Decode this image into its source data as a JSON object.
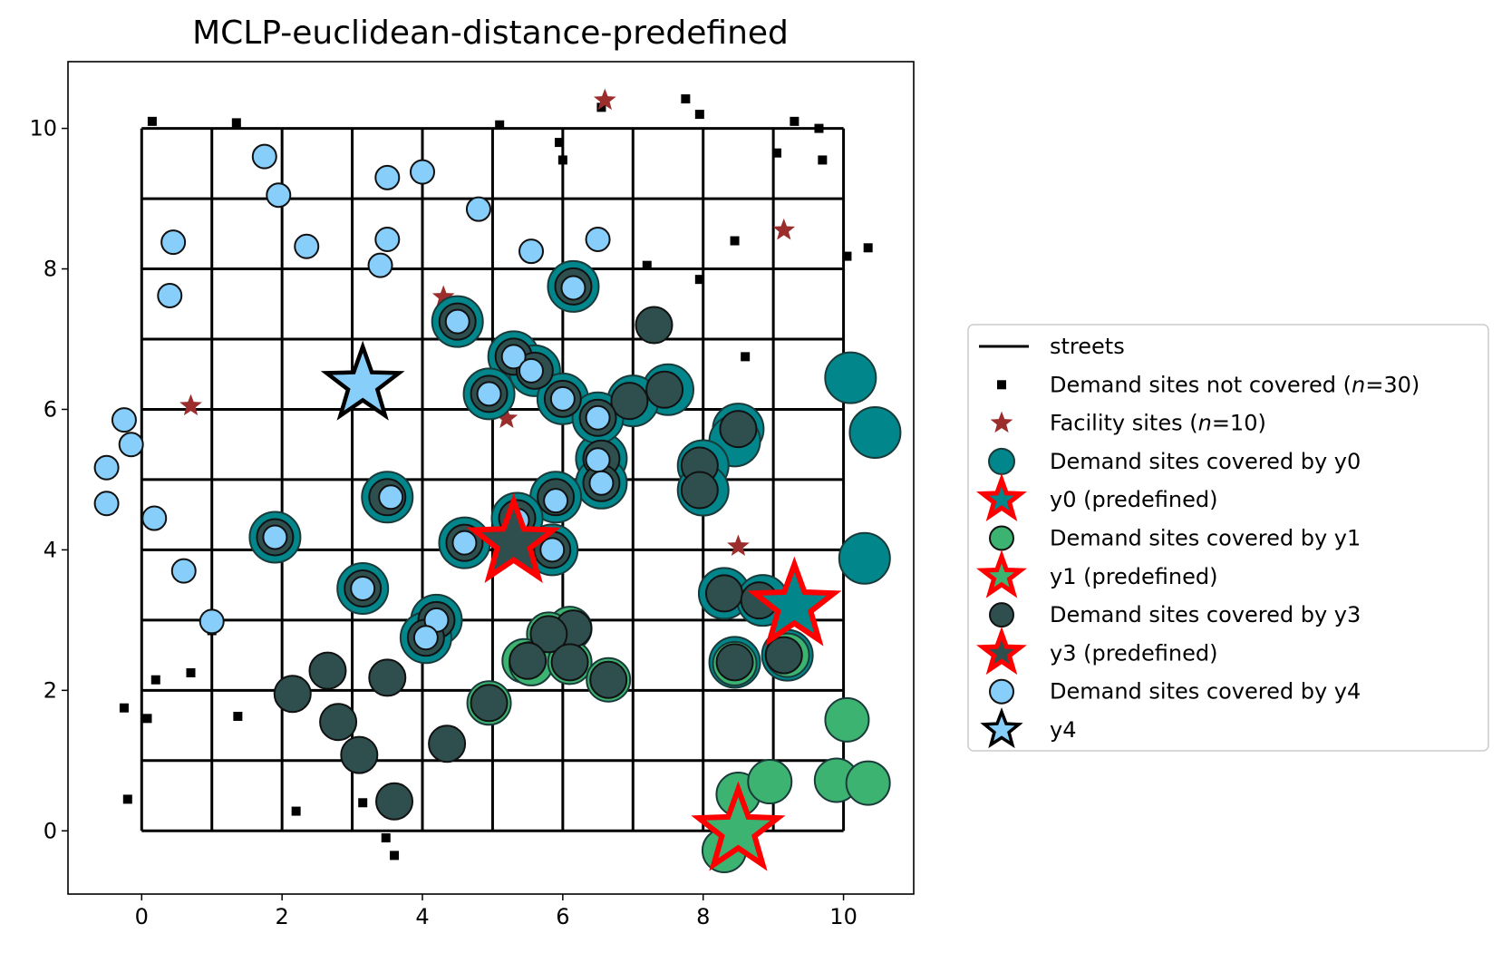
{
  "chart_data": {
    "type": "scatter",
    "title": "MCLP-euclidean-distance-predefined",
    "xlabel": "",
    "ylabel": "",
    "xlim": [
      -1.05,
      11.0
    ],
    "ylim": [
      -0.9,
      10.95
    ],
    "xticks": [
      0,
      2,
      4,
      6,
      8,
      10
    ],
    "yticks": [
      0,
      2,
      4,
      6,
      8,
      10
    ],
    "grid": false,
    "legend_position": "right",
    "legend": [
      {
        "label_pre": "streets",
        "label_italic": "",
        "label_post": "",
        "marker": "line",
        "color": "#000000"
      },
      {
        "label_pre": "Demand sites not covered (",
        "label_italic": "n",
        "label_post": "=30)",
        "marker": "square",
        "color": "#000000"
      },
      {
        "label_pre": "Facility sites (",
        "label_italic": "n",
        "label_post": "=10)",
        "marker": "star-small",
        "color": "#9b2d2d"
      },
      {
        "label_pre": "Demand sites covered by y0",
        "label_italic": "",
        "label_post": "",
        "marker": "circle-ring",
        "color": "#00868b",
        "edge": "#1a3a3a"
      },
      {
        "label_pre": "y0 (predefined)",
        "label_italic": "",
        "label_post": "",
        "marker": "star-red",
        "color": "#00868b"
      },
      {
        "label_pre": "Demand sites covered by y1",
        "label_italic": "",
        "label_post": "",
        "marker": "circle",
        "color": "#3cb371"
      },
      {
        "label_pre": "y1 (predefined)",
        "label_italic": "",
        "label_post": "",
        "marker": "star-red",
        "color": "#3cb371"
      },
      {
        "label_pre": "Demand sites covered by y3",
        "label_italic": "",
        "label_post": "",
        "marker": "circle",
        "color": "#2f4f4f"
      },
      {
        "label_pre": "y3 (predefined)",
        "label_italic": "",
        "label_post": "",
        "marker": "star-red",
        "color": "#2f4f4f"
      },
      {
        "label_pre": "Demand sites covered by y4",
        "label_italic": "",
        "label_post": "",
        "marker": "circle",
        "color": "#87cefa"
      },
      {
        "label_pre": "y4",
        "label_italic": "",
        "label_post": "",
        "marker": "star-black",
        "color": "#87cefa"
      }
    ],
    "colors": {
      "y0": "#00868b",
      "y1": "#3cb371",
      "y3": "#2f4f4f",
      "y4": "#87cefa",
      "facility": "#9b2d2d",
      "uncovered": "#000000"
    },
    "streets": {
      "x_range": [
        0,
        10
      ],
      "y_range": [
        0,
        10
      ],
      "step": 1
    },
    "demand_not_covered": [
      [
        0.15,
        10.1
      ],
      [
        1.35,
        10.08
      ],
      [
        5.1,
        10.05
      ],
      [
        5.95,
        9.8
      ],
      [
        6.0,
        9.55
      ],
      [
        7.75,
        10.42
      ],
      [
        7.95,
        10.2
      ],
      [
        9.3,
        10.1
      ],
      [
        9.65,
        10.0
      ],
      [
        9.05,
        9.65
      ],
      [
        9.7,
        9.55
      ],
      [
        8.45,
        8.4
      ],
      [
        10.05,
        8.18
      ],
      [
        10.35,
        8.3
      ],
      [
        7.2,
        8.05
      ],
      [
        7.95,
        7.85
      ],
      [
        8.6,
        6.75
      ],
      [
        0.2,
        2.15
      ],
      [
        0.7,
        2.25
      ],
      [
        -0.25,
        1.75
      ],
      [
        0.08,
        1.6
      ],
      [
        1.37,
        1.63
      ],
      [
        -0.2,
        0.45
      ],
      [
        2.2,
        0.28
      ],
      [
        3.15,
        0.4
      ],
      [
        3.48,
        -0.1
      ],
      [
        3.6,
        -0.35
      ],
      [
        6.55,
        10.3
      ],
      [
        1.0,
        2.85
      ],
      [
        6.25,
        7.75
      ]
    ],
    "facility_sites": [
      [
        6.6,
        10.4
      ],
      [
        9.15,
        8.55
      ],
      [
        4.3,
        7.6
      ],
      [
        0.7,
        6.05
      ],
      [
        5.2,
        5.87
      ],
      [
        8.5,
        4.05
      ],
      [
        3.15,
        6.35
      ],
      [
        5.3,
        4.1
      ],
      [
        9.3,
        3.2
      ],
      [
        8.5,
        0.0
      ]
    ],
    "covered_y0": [
      [
        10.1,
        6.45
      ],
      [
        10.45,
        5.67
      ],
      [
        10.3,
        3.88
      ],
      [
        7.5,
        6.28
      ],
      [
        7.0,
        6.12
      ],
      [
        8.5,
        5.72
      ],
      [
        8.45,
        5.55
      ],
      [
        8.0,
        5.2
      ],
      [
        8.0,
        4.85
      ],
      [
        6.55,
        5.3
      ],
      [
        6.55,
        4.95
      ],
      [
        5.9,
        4.75
      ],
      [
        5.85,
        4.0
      ],
      [
        5.35,
        4.45
      ],
      [
        8.3,
        3.38
      ],
      [
        8.85,
        3.28
      ],
      [
        9.2,
        2.5
      ],
      [
        8.45,
        2.4
      ],
      [
        6.15,
        7.75
      ],
      [
        4.5,
        7.25
      ],
      [
        5.3,
        6.75
      ],
      [
        5.6,
        6.55
      ],
      [
        4.95,
        6.22
      ],
      [
        6.0,
        6.15
      ],
      [
        6.5,
        5.88
      ],
      [
        4.6,
        4.1
      ],
      [
        3.5,
        4.75
      ],
      [
        1.9,
        4.18
      ],
      [
        3.15,
        3.45
      ],
      [
        4.2,
        3.0
      ],
      [
        4.05,
        2.75
      ]
    ],
    "covered_y1": [
      [
        8.3,
        -0.28
      ],
      [
        8.5,
        0.52
      ],
      [
        8.95,
        0.7
      ],
      [
        9.9,
        0.72
      ],
      [
        10.35,
        0.68
      ],
      [
        10.05,
        1.58
      ],
      [
        4.95,
        1.82
      ],
      [
        6.1,
        2.88
      ],
      [
        5.8,
        2.8
      ],
      [
        5.45,
        2.42
      ],
      [
        5.55,
        2.38
      ],
      [
        6.1,
        2.4
      ],
      [
        6.65,
        2.15
      ],
      [
        8.45,
        2.38
      ],
      [
        9.2,
        2.5
      ]
    ],
    "covered_y3": [
      [
        7.3,
        7.2
      ],
      [
        6.95,
        6.12
      ],
      [
        7.45,
        6.28
      ],
      [
        8.5,
        5.72
      ],
      [
        7.95,
        5.2
      ],
      [
        7.95,
        4.85
      ],
      [
        8.3,
        3.38
      ],
      [
        8.8,
        3.28
      ],
      [
        9.15,
        2.5
      ],
      [
        8.45,
        2.4
      ],
      [
        6.15,
        2.88
      ],
      [
        5.8,
        2.8
      ],
      [
        5.5,
        2.42
      ],
      [
        6.1,
        2.4
      ],
      [
        6.65,
        2.15
      ],
      [
        4.95,
        1.82
      ],
      [
        2.15,
        1.95
      ],
      [
        2.65,
        2.28
      ],
      [
        2.8,
        1.55
      ],
      [
        3.5,
        2.18
      ],
      [
        3.1,
        1.08
      ],
      [
        4.35,
        1.24
      ],
      [
        3.6,
        0.42
      ],
      [
        5.35,
        4.12
      ],
      [
        3.5,
        4.75
      ],
      [
        1.9,
        4.18
      ],
      [
        3.15,
        3.45
      ],
      [
        4.2,
        3.0
      ],
      [
        4.05,
        2.75
      ],
      [
        4.5,
        7.25
      ],
      [
        6.15,
        7.75
      ],
      [
        5.3,
        6.75
      ],
      [
        5.6,
        6.55
      ],
      [
        4.95,
        6.22
      ],
      [
        6.0,
        6.15
      ],
      [
        6.5,
        5.88
      ],
      [
        4.6,
        4.1
      ],
      [
        5.85,
        4.0
      ],
      [
        5.9,
        4.75
      ],
      [
        6.55,
        5.3
      ],
      [
        6.55,
        4.95
      ],
      [
        5.35,
        4.45
      ]
    ],
    "covered_y4": [
      [
        1.75,
        9.6
      ],
      [
        1.95,
        9.05
      ],
      [
        3.5,
        9.3
      ],
      [
        4.0,
        9.38
      ],
      [
        0.45,
        8.38
      ],
      [
        2.35,
        8.32
      ],
      [
        3.5,
        8.42
      ],
      [
        3.4,
        8.05
      ],
      [
        4.8,
        8.85
      ],
      [
        5.55,
        8.25
      ],
      [
        6.5,
        8.42
      ],
      [
        0.4,
        7.62
      ],
      [
        6.15,
        7.73
      ],
      [
        4.5,
        7.25
      ],
      [
        5.3,
        6.75
      ],
      [
        5.55,
        6.55
      ],
      [
        4.95,
        6.22
      ],
      [
        6.0,
        6.15
      ],
      [
        6.5,
        5.88
      ],
      [
        -0.25,
        5.85
      ],
      [
        -0.15,
        5.5
      ],
      [
        -0.5,
        5.17
      ],
      [
        -0.5,
        4.66
      ],
      [
        0.18,
        4.45
      ],
      [
        6.5,
        5.28
      ],
      [
        6.55,
        4.95
      ],
      [
        5.9,
        4.7
      ],
      [
        3.55,
        4.75
      ],
      [
        5.35,
        4.42
      ],
      [
        4.6,
        4.1
      ],
      [
        5.85,
        4.0
      ],
      [
        1.9,
        4.18
      ],
      [
        0.6,
        3.7
      ],
      [
        3.15,
        3.45
      ],
      [
        1.0,
        2.98
      ],
      [
        4.2,
        3.0
      ],
      [
        4.05,
        2.75
      ]
    ],
    "predefined": [
      {
        "name": "y0",
        "x": 9.3,
        "y": 3.2,
        "color": "#00868b"
      },
      {
        "name": "y1",
        "x": 8.5,
        "y": 0.0,
        "color": "#3cb371"
      },
      {
        "name": "y3",
        "x": 5.3,
        "y": 4.1,
        "color": "#2f4f4f"
      }
    ],
    "selected": [
      {
        "name": "y4",
        "x": 3.15,
        "y": 6.35,
        "color": "#87cefa"
      }
    ]
  }
}
